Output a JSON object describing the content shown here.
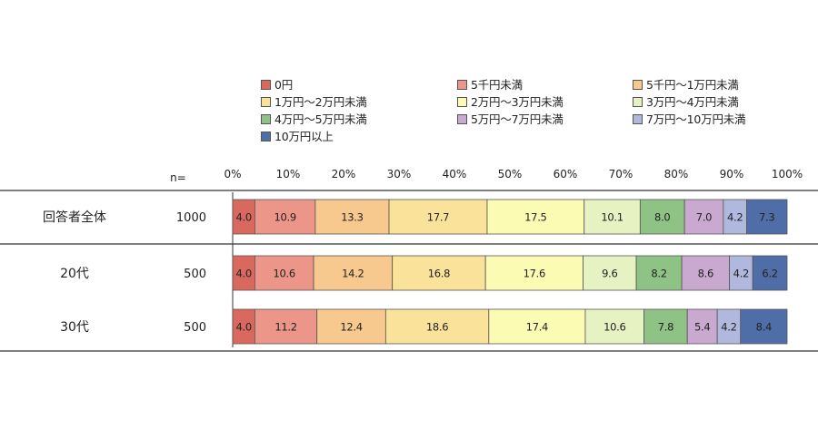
{
  "chart_data": {
    "type": "bar",
    "orientation": "horizontal",
    "stacked": "percent",
    "n_header": "n=",
    "x_ticks": [
      "0%",
      "10%",
      "20%",
      "30%",
      "40%",
      "50%",
      "60%",
      "70%",
      "80%",
      "90%",
      "100%"
    ],
    "xlim": [
      0,
      100
    ],
    "legend_position": "top",
    "categories": [
      "回答者全体",
      "20代",
      "30代"
    ],
    "n_values": [
      "1000",
      "500",
      "500"
    ],
    "series": [
      {
        "name": "0円",
        "color": "#D9695F",
        "values": [
          4.0,
          4.0,
          4.0
        ]
      },
      {
        "name": "5千円未満",
        "color": "#EB9688",
        "values": [
          10.9,
          10.6,
          11.2
        ]
      },
      {
        "name": "5千円～1万円未満",
        "color": "#F7C98E",
        "values": [
          13.3,
          14.2,
          12.4
        ]
      },
      {
        "name": "1万円～2万円未満",
        "color": "#FBE29A",
        "values": [
          17.7,
          16.8,
          18.6
        ]
      },
      {
        "name": "2万円～3万円未満",
        "color": "#FCFBB4",
        "values": [
          17.5,
          17.6,
          17.4
        ]
      },
      {
        "name": "3万円～4万円未満",
        "color": "#E6F2C2",
        "values": [
          10.1,
          9.6,
          10.6
        ]
      },
      {
        "name": "4万円～5万円未満",
        "color": "#8FC285",
        "values": [
          8.0,
          8.2,
          7.8
        ]
      },
      {
        "name": "5万円～7万円未満",
        "color": "#C9A9CF",
        "values": [
          7.0,
          8.6,
          5.4
        ]
      },
      {
        "name": "7万円～10万円未満",
        "color": "#B0B9DD",
        "values": [
          4.2,
          4.2,
          4.2
        ]
      },
      {
        "name": "10万円以上",
        "color": "#4F6DA6",
        "values": [
          7.3,
          6.2,
          8.4
        ]
      }
    ]
  }
}
